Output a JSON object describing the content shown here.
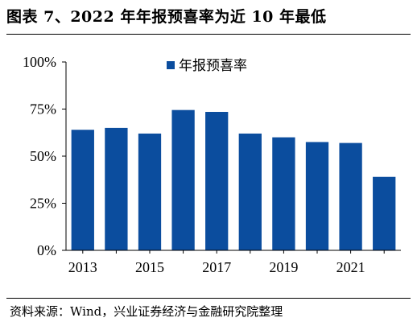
{
  "title": "图表 7、2022 年年报预喜率为近 10 年最低",
  "source": "资料来源：Wind，兴业证券经济与金融研究院整理",
  "chart_data": {
    "type": "bar",
    "categories": [
      "2013",
      "2014",
      "2015",
      "2016",
      "2017",
      "2018",
      "2019",
      "2020",
      "2021",
      "2022"
    ],
    "x_tick_labels": [
      "2013",
      "",
      "2015",
      "",
      "2017",
      "",
      "2019",
      "",
      "2021",
      ""
    ],
    "series": [
      {
        "name": "年报预喜率",
        "values": [
          0.64,
          0.65,
          0.62,
          0.745,
          0.735,
          0.62,
          0.6,
          0.575,
          0.57,
          0.39
        ]
      }
    ],
    "ylim": [
      0,
      1
    ],
    "y_ticks": [
      0,
      0.25,
      0.5,
      0.75,
      1
    ],
    "y_tick_labels": [
      "0%",
      "25%",
      "50%",
      "75%",
      "100%"
    ],
    "legend_position": "top-center",
    "bar_color": "#0b4d9e",
    "grid": false
  }
}
